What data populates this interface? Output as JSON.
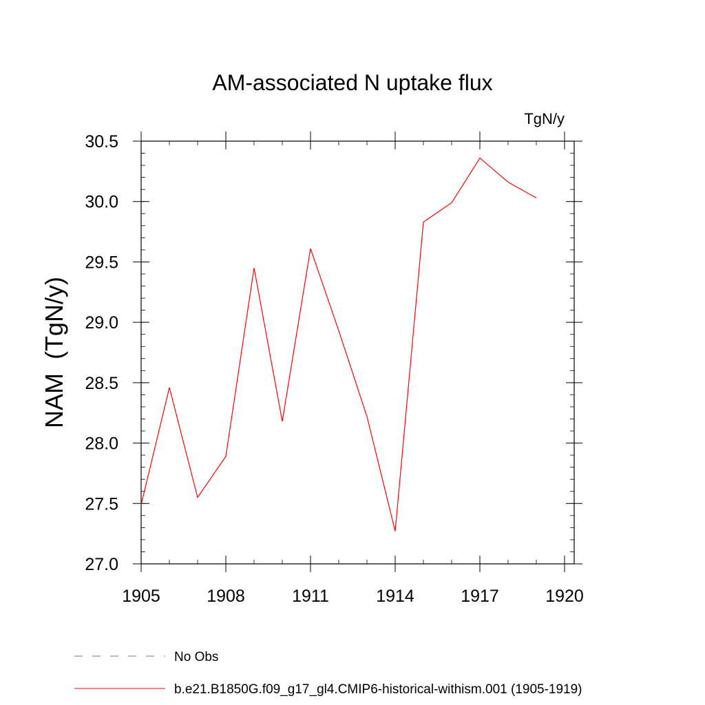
{
  "chart_data": {
    "type": "line",
    "title": "AM-associated N uptake flux",
    "units_label": "TgN/y",
    "ylabel": "NAM  (TgN/y)",
    "xlabel": "",
    "xlim": [
      1905,
      1920
    ],
    "ylim": [
      27.0,
      30.5
    ],
    "x_ticks": [
      "1905",
      "1908",
      "1911",
      "1914",
      "1917",
      "1920"
    ],
    "y_ticks": [
      "27.0",
      "27.5",
      "28.0",
      "28.5",
      "29.0",
      "29.5",
      "30.0",
      "30.5"
    ],
    "grid": false,
    "series": [
      {
        "name": "b.e21.B1850G.f09_g17_gl4.CMIP6-historical-withism.001 (1905-1919)",
        "color": "#ff0000",
        "style": "solid",
        "x": [
          1905,
          1906,
          1907,
          1908,
          1909,
          1910,
          1911,
          1912,
          1913,
          1914,
          1915,
          1916,
          1917,
          1918,
          1919
        ],
        "values": [
          27.49,
          28.46,
          27.55,
          27.89,
          29.45,
          28.18,
          29.61,
          28.93,
          28.22,
          27.27,
          29.83,
          29.99,
          30.36,
          30.16,
          30.03
        ]
      }
    ],
    "legend": {
      "placement": "bottom-left",
      "entries": [
        {
          "label": "No Obs",
          "color": "#7a6fb5",
          "style": "dashed"
        },
        {
          "label": "b.e21.B1850G.f09_g17_gl4.CMIP6-historical-withism.001 (1905-1919)",
          "color": "#ff0000",
          "style": "solid"
        }
      ]
    }
  }
}
